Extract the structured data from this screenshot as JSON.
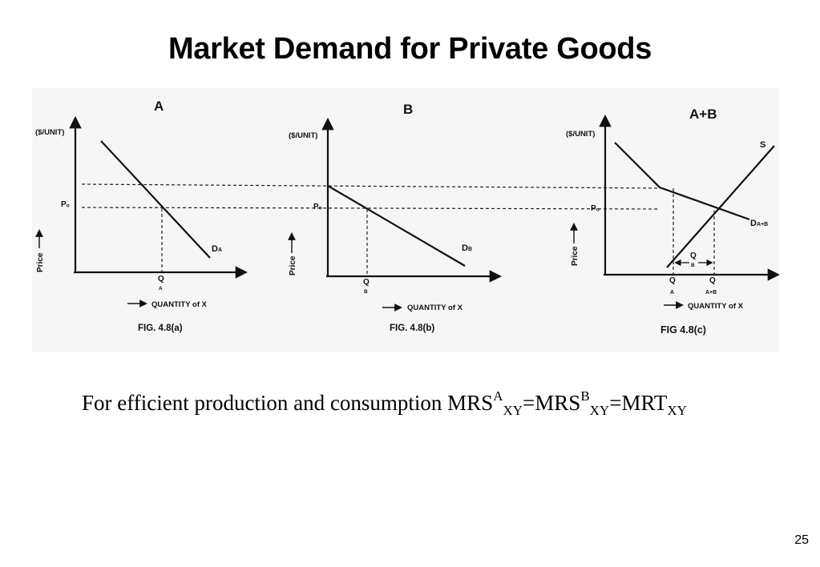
{
  "title": "Market Demand for Private Goods",
  "figure": {
    "panels": [
      {
        "heading": "A",
        "y_unit": "($/UNIT)",
        "price_label": "Price",
        "p_label": "Pₒ",
        "curve_label": "D",
        "curve_sub": "A",
        "q_label": "Q",
        "q_sub": "A",
        "x_axis_label": "QUANTITY of X",
        "caption": "FIG. 4.8(a)"
      },
      {
        "heading": "B",
        "y_unit": "($/UNIT)",
        "price_label": "Price",
        "p_label": "Pₒ",
        "curve_label": "D",
        "curve_sub": "B",
        "q_label": "Q",
        "q_sub": "B",
        "x_axis_label": "QUANTITY of X",
        "caption": "FIG. 4.8(b)"
      },
      {
        "heading": "A+B",
        "y_unit": "($/UNIT)",
        "price_label": "Price",
        "p_label": "Pₒ",
        "supply_label": "S",
        "curve_label": "D",
        "curve_sub": "A+B",
        "q1_label": "Q",
        "q1_sub": "A",
        "q2_label": "Q",
        "q2_sub": "A+B",
        "qb_label": "Q",
        "qb_sub": "B",
        "x_axis_label": "QUANTITY of X",
        "caption": "FIG 4.8(c)"
      }
    ]
  },
  "equation": {
    "text": "For efficient production and consumption MRS",
    "sup1": "A",
    "sub1": "XY",
    "mid": "=MRS",
    "sup2": "B",
    "sub2": "XY",
    "end": "=MRT",
    "sub3": "XY"
  },
  "page_number": "25"
}
